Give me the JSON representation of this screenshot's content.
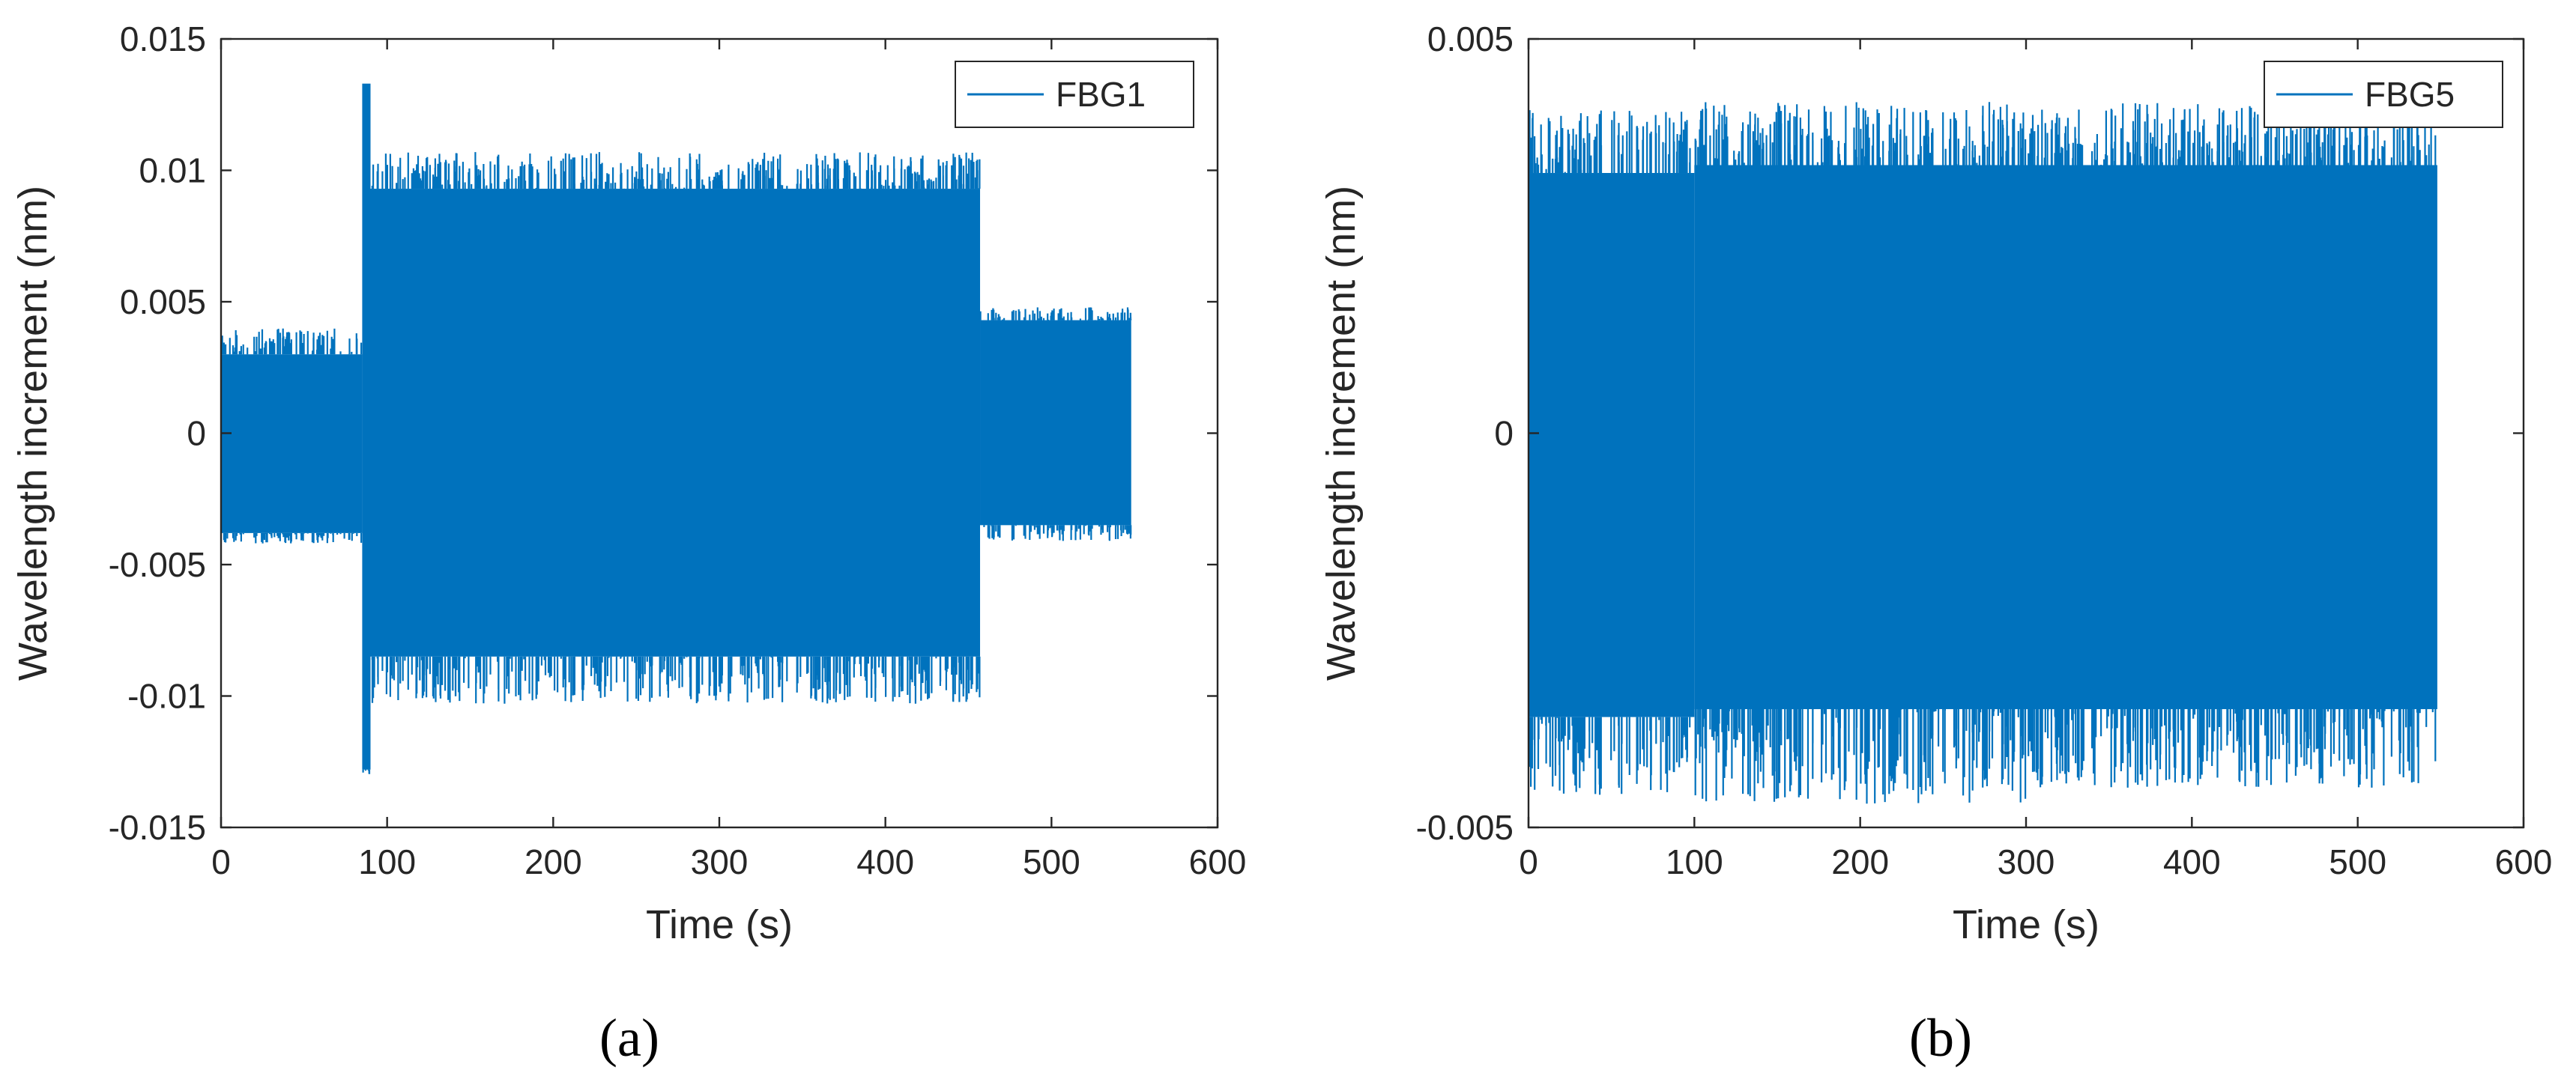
{
  "chart_data": [
    {
      "type": "line",
      "panel": "(a)",
      "legend": "FBG1",
      "series_color": "#0072BD",
      "xlabel": "Time (s)",
      "ylabel": "Wavelength increment (nm)",
      "xlim": [
        0,
        600
      ],
      "ylim": [
        -0.015,
        0.015
      ],
      "xticks": [
        0,
        100,
        200,
        300,
        400,
        500,
        600
      ],
      "yticks": [
        -0.015,
        -0.01,
        -0.005,
        0,
        0.005,
        0.01,
        0.015
      ],
      "xtick_labels": [
        "0",
        "100",
        "200",
        "300",
        "400",
        "500",
        "600"
      ],
      "ytick_labels": [
        "-0.015",
        "-0.01",
        "-0.005",
        "0",
        "0.005",
        "0.01",
        "0.015"
      ],
      "envelope": [
        {
          "t": [
            0,
            85
          ],
          "max": 0.003,
          "min": -0.0038,
          "spike_max": 0.004,
          "spike_min": -0.0042
        },
        {
          "t": [
            85,
            90
          ],
          "max": 0.0133,
          "min": -0.0128,
          "spike_max": 0.0133,
          "spike_min": -0.013
        },
        {
          "t": [
            90,
            457
          ],
          "max": 0.0093,
          "min": -0.0085,
          "spike_max": 0.0107,
          "spike_min": -0.0103
        },
        {
          "t": [
            457,
            548
          ],
          "max": 0.0043,
          "min": -0.0035,
          "spike_max": 0.0048,
          "spike_min": -0.0041
        }
      ]
    },
    {
      "type": "line",
      "panel": "(b)",
      "legend": "FBG5",
      "series_color": "#0072BD",
      "xlabel": "Time (s)",
      "ylabel": "Wavelength increment (nm)",
      "xlim": [
        0,
        600
      ],
      "ylim": [
        -0.005,
        0.005
      ],
      "xticks": [
        0,
        100,
        200,
        300,
        400,
        500,
        600
      ],
      "yticks": [
        -0.005,
        0,
        0.005
      ],
      "xtick_labels": [
        "0",
        "100",
        "200",
        "300",
        "400",
        "500",
        "600"
      ],
      "ytick_labels": [
        "-0.005",
        "0",
        "0.005"
      ],
      "envelope": [
        {
          "t": [
            0,
            100
          ],
          "max": 0.0033,
          "min": -0.0036,
          "spike_max": 0.0041,
          "spike_min": -0.0046
        },
        {
          "t": [
            100,
            300
          ],
          "max": 0.0034,
          "min": -0.0035,
          "spike_max": 0.0042,
          "spike_min": -0.0047
        },
        {
          "t": [
            300,
            548
          ],
          "max": 0.0034,
          "min": -0.0035,
          "spike_max": 0.0042,
          "spike_min": -0.0045
        }
      ]
    }
  ]
}
